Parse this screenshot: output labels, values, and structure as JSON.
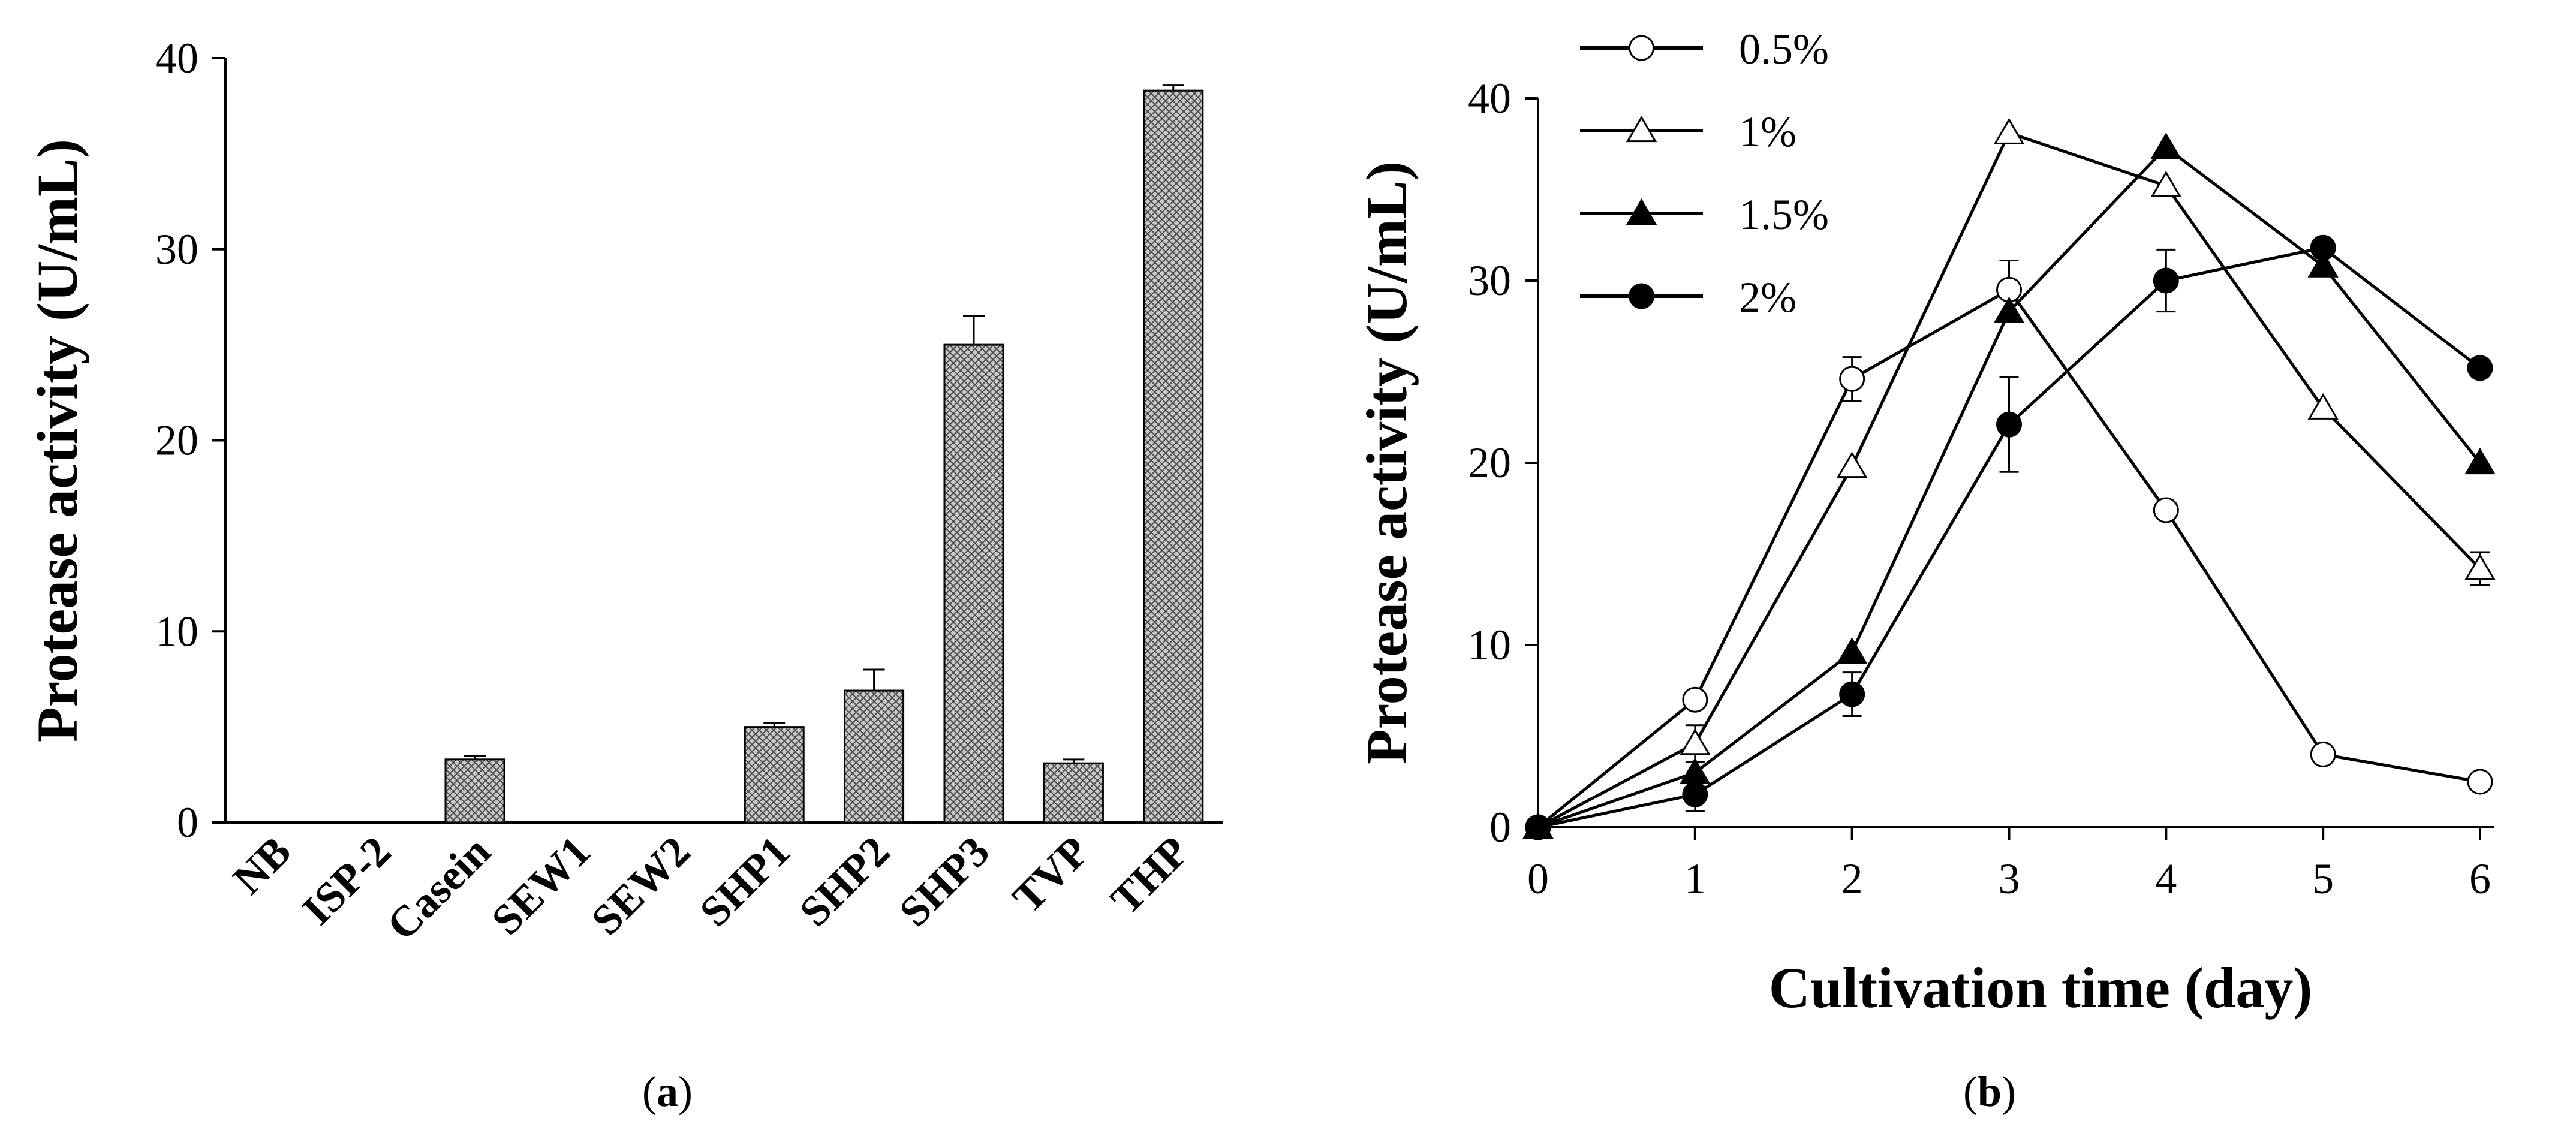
{
  "chart_data": [
    {
      "type": "bar",
      "panel_label": "a",
      "ylabel": "Protease activity (U/mL)",
      "xlabel": "",
      "ylim": [
        0,
        40
      ],
      "yticks": [
        "0",
        "10",
        "20",
        "30",
        "40"
      ],
      "categories": [
        "NB",
        "ISP-2",
        "Casein",
        "SEW1",
        "SEW2",
        "SHP1",
        "SHP2",
        "SHP3",
        "TVP",
        "THP"
      ],
      "values": [
        0,
        0,
        3.3,
        0,
        0,
        5.0,
        6.9,
        25.0,
        3.1,
        38.3
      ],
      "errors": [
        0,
        0,
        0.2,
        0,
        0,
        0.2,
        1.1,
        1.5,
        0.2,
        0.3
      ]
    },
    {
      "type": "line",
      "panel_label": "b",
      "ylabel": "Protease activity (U/mL)",
      "xlabel": "Cultivation time (day)",
      "xlim": [
        0,
        6
      ],
      "ylim": [
        0,
        40
      ],
      "xticks": [
        "0",
        "1",
        "2",
        "3",
        "4",
        "5",
        "6"
      ],
      "yticks": [
        "0",
        "10",
        "20",
        "30",
        "40"
      ],
      "x": [
        0,
        1,
        2,
        3,
        4,
        5,
        6
      ],
      "series": [
        {
          "name": "0.5%",
          "marker": "open-circle",
          "values": [
            0,
            7.0,
            24.6,
            29.5,
            17.4,
            4.0,
            2.5
          ],
          "errors": [
            0,
            0,
            1.2,
            1.6,
            0,
            0,
            0
          ]
        },
        {
          "name": "1%",
          "marker": "open-triangle",
          "values": [
            0,
            4.6,
            19.8,
            38.1,
            35.2,
            23.0,
            14.2
          ],
          "errors": [
            0,
            1.0,
            0,
            0,
            0,
            0,
            0.9
          ]
        },
        {
          "name": "1.5%",
          "marker": "filled-triangle",
          "values": [
            0,
            3.0,
            9.6,
            28.3,
            37.3,
            30.8,
            20.0
          ],
          "errors": [
            0,
            0,
            0,
            0,
            0,
            0,
            0
          ]
        },
        {
          "name": "2%",
          "marker": "filled-circle",
          "values": [
            0,
            1.8,
            7.3,
            22.1,
            30.0,
            31.8,
            25.2
          ],
          "errors": [
            0,
            0.9,
            1.2,
            2.6,
            1.7,
            0,
            0
          ]
        }
      ]
    }
  ]
}
